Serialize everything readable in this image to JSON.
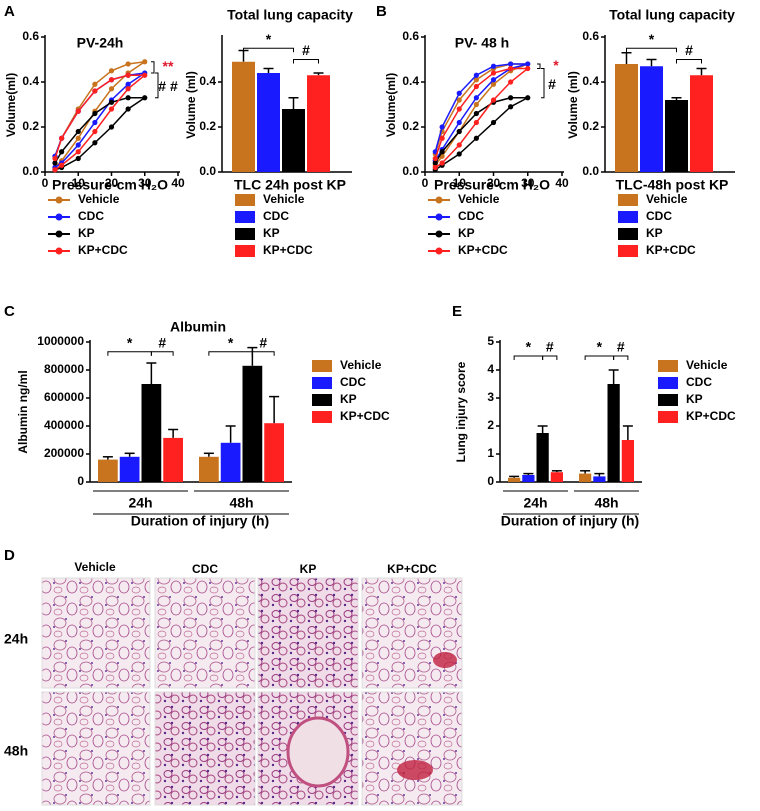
{
  "panel_labels": [
    "A",
    "B",
    "C",
    "D",
    "E"
  ],
  "chart_data": [
    {
      "type": "line",
      "title": "PV-24h",
      "xlabel": "Pressure-cm H₂O",
      "ylabel": "Volume(ml)",
      "x": [
        3,
        5,
        10,
        15,
        20,
        25,
        30,
        25,
        20,
        15,
        10,
        5,
        3
      ],
      "series": [
        {
          "name": "Vehicle",
          "color": "#c8741e",
          "values": [
            0.02,
            0.05,
            0.15,
            0.27,
            0.37,
            0.44,
            0.49,
            0.48,
            0.45,
            0.39,
            0.28,
            0.15,
            0.07
          ]
        },
        {
          "name": "CDC",
          "color": "#1a1aff",
          "values": [
            0.02,
            0.04,
            0.12,
            0.22,
            0.32,
            0.39,
            0.44,
            0.43,
            0.41,
            0.36,
            0.27,
            0.15,
            0.07
          ]
        },
        {
          "name": "KP",
          "color": "#000000",
          "values": [
            0.01,
            0.02,
            0.06,
            0.13,
            0.2,
            0.28,
            0.33,
            0.33,
            0.31,
            0.26,
            0.18,
            0.09,
            0.04
          ]
        },
        {
          "name": "KP+CDC",
          "color": "#ff2020",
          "values": [
            0.01,
            0.03,
            0.09,
            0.18,
            0.28,
            0.37,
            0.43,
            0.43,
            0.41,
            0.36,
            0.27,
            0.15,
            0.06
          ]
        }
      ],
      "xlim": [
        0,
        40
      ],
      "xticks": [
        0,
        10,
        20,
        30,
        40
      ],
      "ylim": [
        0,
        0.6
      ],
      "yticks": [
        {
          "value": 0,
          "label": "0.0"
        },
        {
          "value": 0.2,
          "label": "0.2"
        },
        {
          "value": 0.4,
          "label": "0.4"
        },
        {
          "value": 0.6,
          "label": "0.6"
        }
      ],
      "annotations": [
        "**",
        "# #"
      ]
    },
    {
      "type": "bar",
      "title": "Total lung capacity",
      "xlabel": "TLC 24h post KP",
      "ylabel": "Volume (ml)",
      "series": [
        {
          "name": "Vehicle",
          "color": "#c8741e",
          "values": [
            0.49
          ],
          "errors": [
            0.05
          ]
        },
        {
          "name": "CDC",
          "color": "#1a1aff",
          "values": [
            0.44
          ],
          "errors": [
            0.02
          ]
        },
        {
          "name": "KP",
          "color": "#000000",
          "values": [
            0.28
          ],
          "errors": [
            0.05
          ]
        },
        {
          "name": "KP+CDC",
          "color": "#ff2020",
          "values": [
            0.43
          ],
          "errors": [
            0.01
          ]
        }
      ],
      "ylim": [
        0,
        0.6
      ],
      "yticks": [
        {
          "value": 0,
          "label": "0.0"
        },
        {
          "value": 0.2,
          "label": "0.2"
        },
        {
          "value": 0.4,
          "label": "0.4"
        }
      ],
      "annotations": [
        "*",
        "#"
      ]
    },
    {
      "type": "line",
      "title": "PV- 48 h",
      "xlabel": "Pressure-cm H₂O",
      "ylabel": "Volume(ml)",
      "x": [
        3,
        5,
        10,
        15,
        20,
        25,
        30,
        25,
        20,
        15,
        10,
        5,
        3
      ],
      "series": [
        {
          "name": "Vehicle",
          "color": "#c8741e",
          "values": [
            0.03,
            0.07,
            0.18,
            0.3,
            0.39,
            0.45,
            0.48,
            0.48,
            0.46,
            0.41,
            0.32,
            0.18,
            0.08
          ]
        },
        {
          "name": "CDC",
          "color": "#1a1aff",
          "values": [
            0.05,
            0.1,
            0.22,
            0.33,
            0.41,
            0.46,
            0.48,
            0.48,
            0.47,
            0.43,
            0.35,
            0.2,
            0.09
          ]
        },
        {
          "name": "KP",
          "color": "#000000",
          "values": [
            0.01,
            0.03,
            0.08,
            0.15,
            0.22,
            0.29,
            0.33,
            0.33,
            0.31,
            0.26,
            0.18,
            0.09,
            0.04
          ]
        },
        {
          "name": "KP+CDC",
          "color": "#ff2020",
          "values": [
            0.02,
            0.04,
            0.12,
            0.22,
            0.32,
            0.4,
            0.46,
            0.46,
            0.44,
            0.38,
            0.28,
            0.15,
            0.06
          ]
        }
      ],
      "xlim": [
        0,
        40
      ],
      "xticks": [
        0,
        10,
        20,
        30,
        40
      ],
      "ylim": [
        0,
        0.6
      ],
      "yticks": [
        {
          "value": 0,
          "label": "0.0"
        },
        {
          "value": 0.2,
          "label": "0.2"
        },
        {
          "value": 0.4,
          "label": "0.4"
        },
        {
          "value": 0.6,
          "label": "0.6"
        }
      ],
      "annotations": [
        "*",
        "#"
      ]
    },
    {
      "type": "bar",
      "title": "Total lung capacity",
      "xlabel": "TLC-48h post KP",
      "ylabel": "Volume (ml)",
      "series": [
        {
          "name": "Vehicle",
          "color": "#c8741e",
          "values": [
            0.48
          ],
          "errors": [
            0.05
          ]
        },
        {
          "name": "CDC",
          "color": "#1a1aff",
          "values": [
            0.47
          ],
          "errors": [
            0.03
          ]
        },
        {
          "name": "KP",
          "color": "#000000",
          "values": [
            0.32
          ],
          "errors": [
            0.01
          ]
        },
        {
          "name": "KP+CDC",
          "color": "#ff2020",
          "values": [
            0.43
          ],
          "errors": [
            0.03
          ]
        }
      ],
      "ylim": [
        0,
        0.6
      ],
      "yticks": [
        {
          "value": 0,
          "label": "0.0"
        },
        {
          "value": 0.2,
          "label": "0.2"
        },
        {
          "value": 0.4,
          "label": "0.4"
        },
        {
          "value": 0.6,
          "label": "0.6"
        }
      ],
      "annotations": [
        "*",
        "#"
      ]
    },
    {
      "type": "grouped-bar",
      "title": "Albumin",
      "xlabel": "Duration of injury (h)",
      "ylabel": "Albumin ng/ml",
      "categories": [
        "24h",
        "48h"
      ],
      "series": [
        {
          "name": "Vehicle",
          "color": "#c8741e",
          "values": [
            160000,
            180000
          ],
          "errors": [
            20000,
            25000
          ]
        },
        {
          "name": "CDC",
          "color": "#1a1aff",
          "values": [
            180000,
            280000
          ],
          "errors": [
            25000,
            120000
          ]
        },
        {
          "name": "KP",
          "color": "#000000",
          "values": [
            700000,
            830000
          ],
          "errors": [
            150000,
            130000
          ]
        },
        {
          "name": "KP+CDC",
          "color": "#ff2020",
          "values": [
            315000,
            420000
          ],
          "errors": [
            60000,
            190000
          ]
        }
      ],
      "ylim": [
        0,
        1000000
      ],
      "yticks": [
        0,
        200000,
        400000,
        600000,
        800000,
        1000000
      ],
      "annotations": [
        "*",
        "#",
        "*",
        "#"
      ]
    },
    {
      "type": "grouped-bar",
      "xlabel": "Duration of injury (h)",
      "ylabel": "Lung injury score",
      "categories": [
        "24h",
        "48h"
      ],
      "series": [
        {
          "name": "Vehicle",
          "color": "#c8741e",
          "values": [
            0.15,
            0.3
          ],
          "errors": [
            0.05,
            0.1
          ]
        },
        {
          "name": "CDC",
          "color": "#1a1aff",
          "values": [
            0.25,
            0.2
          ],
          "errors": [
            0.05,
            0.1
          ]
        },
        {
          "name": "KP",
          "color": "#000000",
          "values": [
            1.75,
            3.5
          ],
          "errors": [
            0.25,
            0.5
          ]
        },
        {
          "name": "KP+CDC",
          "color": "#ff2020",
          "values": [
            0.35,
            1.5
          ],
          "errors": [
            0.05,
            0.5
          ]
        }
      ],
      "ylim": [
        0,
        5
      ],
      "yticks": [
        0,
        1,
        2,
        3,
        4,
        5
      ],
      "annotations": [
        "*",
        "#",
        "*",
        "#"
      ]
    }
  ],
  "histology": {
    "columns": [
      "Vehicle",
      "CDC",
      "KP",
      "KP+CDC"
    ],
    "rows": [
      "24h",
      "48h"
    ]
  }
}
